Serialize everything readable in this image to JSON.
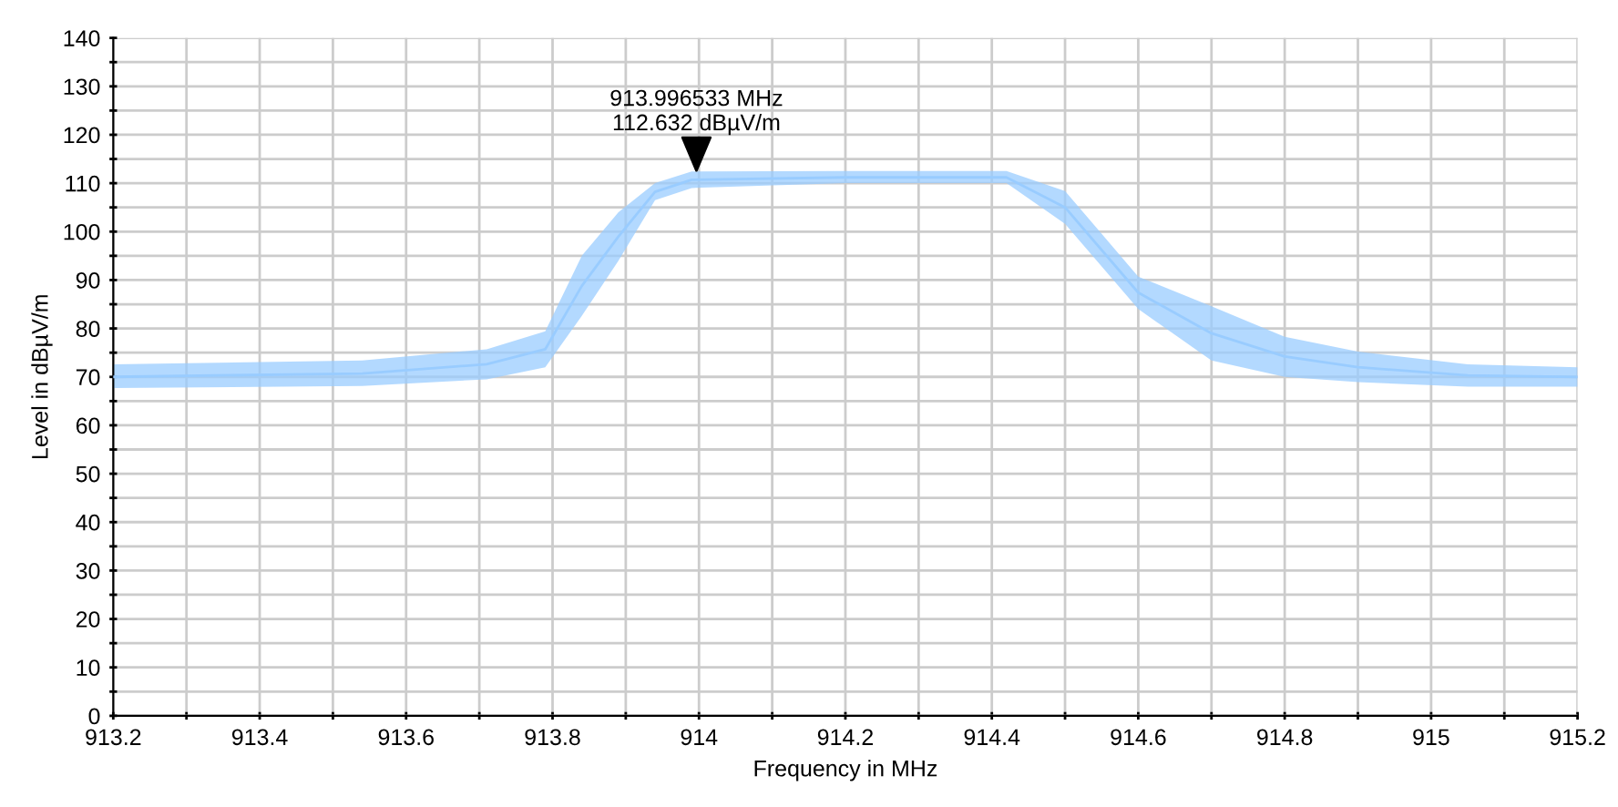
{
  "chart_data": {
    "type": "line",
    "xlabel": "Frequency in MHz",
    "ylabel": "Level in dBµV/m",
    "x": [
      913.2,
      913.54,
      913.71,
      913.79,
      913.84,
      913.89,
      913.94,
      913.99,
      914.2,
      914.42,
      914.5,
      914.6,
      914.7,
      914.8,
      914.9,
      915.05,
      915.2
    ],
    "series": [
      {
        "color": "#99ccff",
        "values": [
          70,
          70.7,
          72.6,
          75.7,
          88.8,
          99,
          108.2,
          110.7,
          111.2,
          111.2,
          105,
          87.4,
          79,
          74.2,
          72,
          70.3,
          70
        ],
        "lower": [
          67.7,
          68.1,
          69.5,
          72,
          82.6,
          94,
          106.5,
          109,
          110,
          110,
          101.6,
          84,
          73.4,
          70,
          68.9,
          68,
          68
        ],
        "upper": [
          72.6,
          73.4,
          75.7,
          79.4,
          95,
          104,
          110,
          112.4,
          112.5,
          112.5,
          108.4,
          90.7,
          84.6,
          78.3,
          75.2,
          72.6,
          72
        ]
      }
    ],
    "annotations": [
      {
        "text": "913.996533 MHz\n112.632 dBµV/m",
        "x": 913.996533,
        "y": 112.632
      }
    ],
    "xlim": [
      913.2,
      915.2
    ],
    "xticks": [
      913.2,
      {
        "value": 913.3,
        "label": null
      },
      913.4,
      {
        "value": 913.5,
        "label": null
      },
      913.6,
      {
        "value": 913.7,
        "label": null
      },
      913.8,
      {
        "value": 913.9,
        "label": null
      },
      914,
      {
        "value": 914.1,
        "label": null
      },
      914.2,
      {
        "value": 914.3,
        "label": null
      },
      914.4,
      {
        "value": 914.5,
        "label": null
      },
      914.6,
      {
        "value": 914.7,
        "label": null
      },
      914.8,
      {
        "value": 914.9,
        "label": null
      },
      915,
      {
        "value": 915.1,
        "label": null
      },
      915.2
    ],
    "ylim": [
      0,
      140
    ],
    "yticks": [
      0,
      {
        "value": 5,
        "label": null
      },
      10,
      {
        "value": 15,
        "label": null
      },
      20,
      {
        "value": 25,
        "label": null
      },
      30,
      {
        "value": 35,
        "label": null
      },
      40,
      {
        "value": 45,
        "label": null
      },
      50,
      {
        "value": 55,
        "label": null
      },
      60,
      {
        "value": 65,
        "label": null
      },
      70,
      {
        "value": 75,
        "label": null
      },
      80,
      {
        "value": 85,
        "label": null
      },
      90,
      {
        "value": 95,
        "label": null
      },
      100,
      {
        "value": 105,
        "label": null
      },
      110,
      {
        "value": 115,
        "label": null
      },
      120,
      {
        "value": 125,
        "label": null
      },
      130,
      {
        "value": 135,
        "label": null
      },
      140
    ],
    "grid": true
  }
}
